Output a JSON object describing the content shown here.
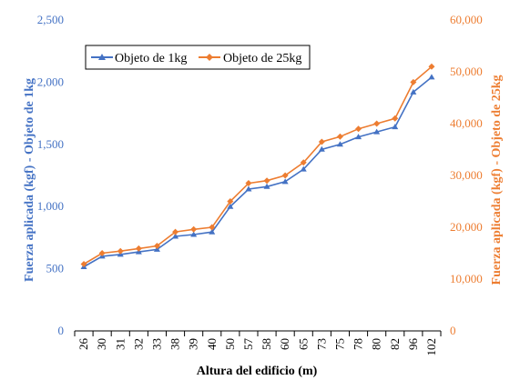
{
  "chart_data": {
    "type": "line",
    "categories": [
      "26",
      "30",
      "31",
      "32",
      "33",
      "38",
      "39",
      "40",
      "50",
      "57",
      "58",
      "60",
      "65",
      "73",
      "75",
      "78",
      "80",
      "82",
      "96",
      "102"
    ],
    "series": [
      {
        "name": "Objeto de 1kg",
        "axis": "left",
        "color": "#4472C4",
        "marker": "triangle",
        "values": [
          515,
          600,
          615,
          635,
          655,
          760,
          775,
          795,
          1000,
          1140,
          1160,
          1200,
          1300,
          1460,
          1500,
          1560,
          1600,
          1640,
          1920,
          2040
        ]
      },
      {
        "name": "Objeto de 25kg",
        "axis": "right",
        "color": "#ED7D31",
        "marker": "diamond",
        "values": [
          12900,
          15000,
          15400,
          15900,
          16400,
          19100,
          19600,
          20000,
          25000,
          28500,
          29000,
          30000,
          32500,
          36500,
          37500,
          39000,
          40000,
          41000,
          48000,
          51000
        ]
      }
    ],
    "xlabel": "Altura del edificio (m)",
    "ylabel_left": "Fuerza aplicada (kgf) - Objeto de 1kg",
    "ylabel_right": "Fuerza aplicada (kgf) - Objeto de 25kg",
    "ylim_left": [
      0,
      2500
    ],
    "ylim_right": [
      0,
      60000
    ],
    "yticks_left": [
      "0",
      "500",
      "1,000",
      "1,500",
      "2,000",
      "2,500"
    ],
    "yticks_right": [
      "0",
      "10,000",
      "20,000",
      "30,000",
      "40,000",
      "50,000",
      "60,000"
    ],
    "grid": false,
    "legend_position": "top-left"
  }
}
